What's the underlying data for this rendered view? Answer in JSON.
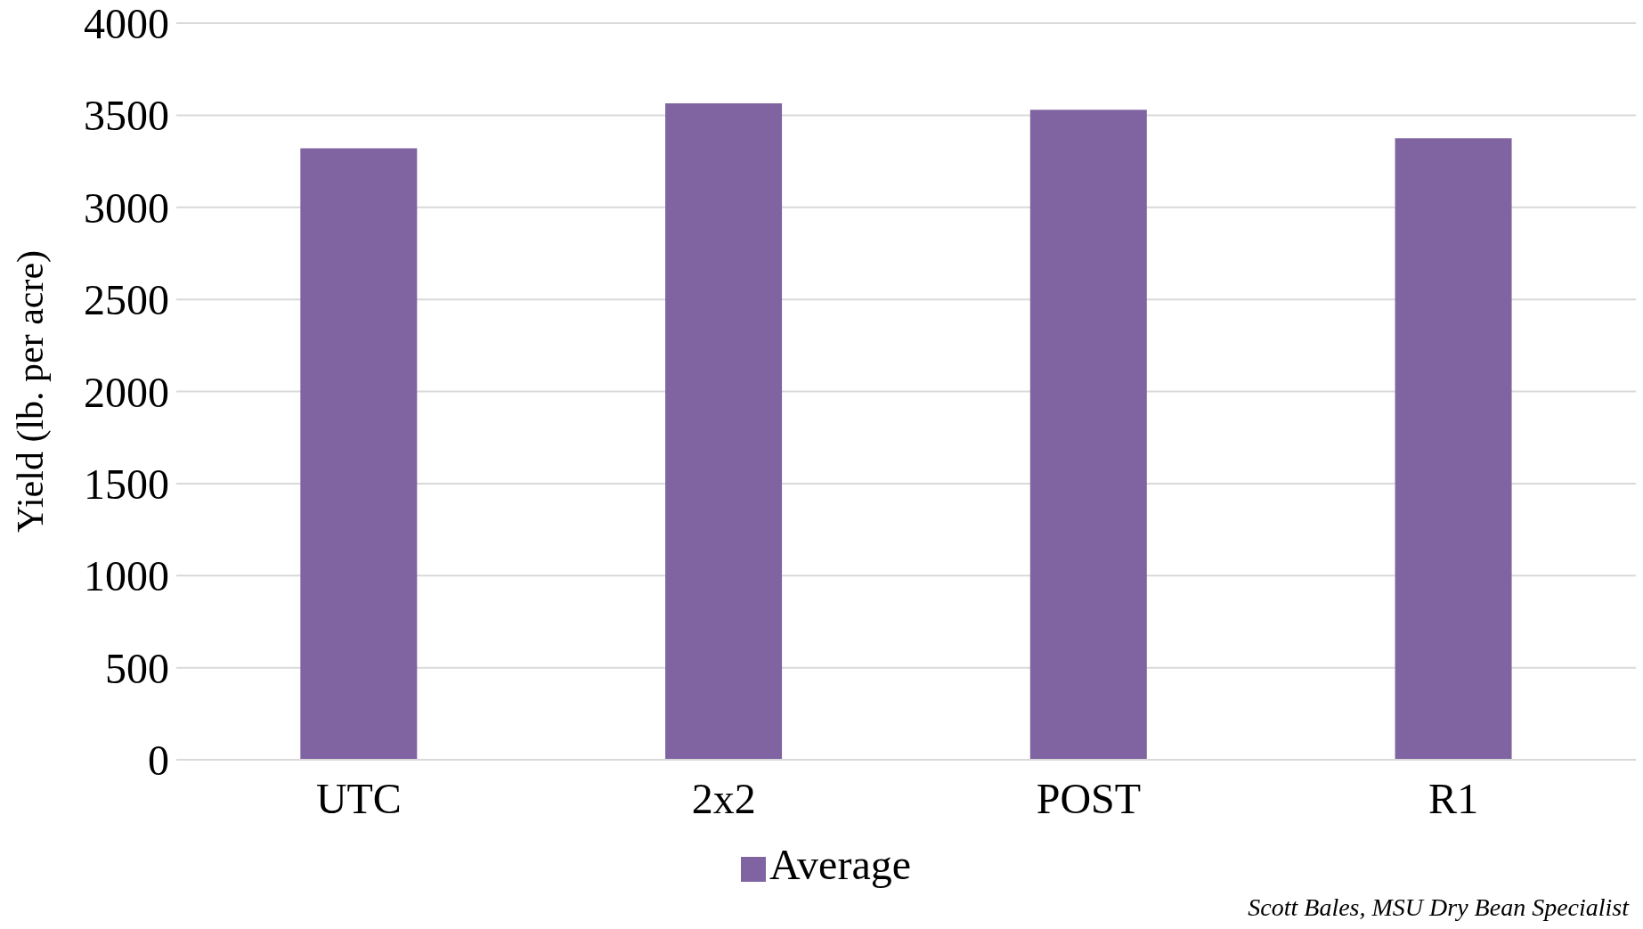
{
  "chart_data": {
    "type": "bar",
    "ylabel": "Yield (lb. per acre)",
    "categories": [
      "UTC",
      "2x2",
      "POST",
      "R1"
    ],
    "series": [
      {
        "name": "Average",
        "color": "#8064a2",
        "values": [
          3320,
          3565,
          3530,
          3375
        ]
      }
    ],
    "ylim": [
      0,
      4000
    ],
    "yticks": [
      0,
      500,
      1000,
      1500,
      2000,
      2500,
      3000,
      3500,
      4000
    ],
    "grid": "y",
    "legend": "bottom",
    "annotations": [
      "Scott Bales, MSU Dry Bean Specialist"
    ]
  }
}
